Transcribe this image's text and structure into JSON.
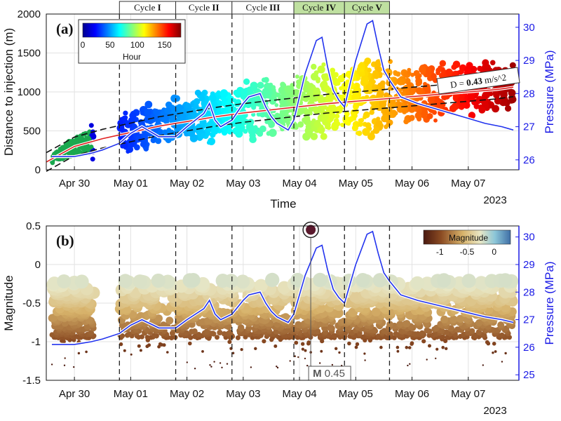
{
  "chart_data": [
    {
      "panel": "(a)",
      "type": "scatter",
      "xlabel": "Time",
      "ylabel": "Distance to injection (m)",
      "ylabel_right": "Pressure (MPa)",
      "xlim": [
        0,
        8.4
      ],
      "ylim": [
        0,
        2000
      ],
      "ylim_right": [
        25.7,
        30.4
      ],
      "x_ticks": [
        {
          "x": 0.5,
          "label": "Apr 30"
        },
        {
          "x": 1.5,
          "label": "May 01"
        },
        {
          "x": 2.5,
          "label": "May 02"
        },
        {
          "x": 3.5,
          "label": "May 03"
        },
        {
          "x": 4.5,
          "label": "May 04"
        },
        {
          "x": 5.5,
          "label": "May 05"
        },
        {
          "x": 6.5,
          "label": "May 06"
        },
        {
          "x": 7.5,
          "label": "May 07"
        }
      ],
      "x_year_label": "2023",
      "y_ticks": [
        0,
        500,
        1000,
        1500,
        2000
      ],
      "y_ticks_right": [
        26,
        27,
        28,
        29,
        30
      ],
      "colorbar": {
        "label": "Hour",
        "ticks": [
          0,
          50,
          100,
          150
        ],
        "range": [
          0,
          180
        ],
        "colormap": "jet"
      },
      "cycles": [
        {
          "label": "Cycle",
          "numeral": "I",
          "x0": 1.3,
          "x1": 2.3,
          "highlight": false
        },
        {
          "label": "Cycle",
          "numeral": "II",
          "x0": 2.3,
          "x1": 3.3,
          "highlight": false
        },
        {
          "label": "Cycle",
          "numeral": "III",
          "x0": 3.3,
          "x1": 4.4,
          "highlight": false
        },
        {
          "label": "Cycle",
          "numeral": "IV",
          "x0": 4.4,
          "x1": 5.3,
          "highlight": true
        },
        {
          "label": "Cycle",
          "numeral": "V",
          "x0": 5.3,
          "x1": 6.1,
          "highlight": true
        }
      ],
      "cycle_highlight_color": "#bfe0a0",
      "dashed_boundaries": [
        1.3,
        2.3,
        3.3,
        4.4,
        5.3,
        6.1
      ],
      "diffusion_fit": {
        "label": "D = 0.43 m/s^2",
        "label_prefix": "D = ",
        "label_value": "0.43",
        "label_unit": " m/s^2",
        "x": [
          0,
          0.5,
          1,
          1.5,
          2,
          2.5,
          3,
          3.5,
          4,
          4.5,
          5,
          5.5,
          6,
          6.5,
          7,
          7.5,
          8,
          8.3
        ],
        "y": [
          100,
          300,
          400,
          480,
          560,
          620,
          680,
          730,
          770,
          810,
          850,
          880,
          910,
          940,
          970,
          1000,
          1030,
          1060
        ],
        "upper_offset": 120,
        "lower_offset": -120,
        "color": "#e02020"
      },
      "pressure": {
        "color": "#2233ee",
        "x": [
          0.1,
          0.3,
          0.5,
          0.8,
          1.0,
          1.3,
          1.5,
          1.7,
          1.9,
          2.0,
          2.1,
          2.3,
          2.5,
          2.8,
          2.9,
          3.0,
          3.1,
          3.3,
          3.5,
          3.6,
          3.8,
          3.9,
          4.0,
          4.1,
          4.2,
          4.3,
          4.4,
          4.6,
          4.8,
          4.9,
          5.0,
          5.1,
          5.2,
          5.3,
          5.5,
          5.7,
          5.8,
          5.9,
          6.0,
          6.1,
          6.3,
          6.6,
          7.0,
          7.4,
          7.8,
          8.1,
          8.3
        ],
        "y": [
          26.1,
          26.1,
          26.1,
          26.2,
          26.3,
          26.5,
          26.8,
          27.0,
          26.8,
          26.7,
          26.7,
          26.7,
          27.0,
          27.4,
          27.7,
          27.2,
          27.0,
          27.2,
          27.7,
          27.9,
          28.0,
          27.6,
          27.3,
          27.1,
          27.0,
          26.9,
          27.2,
          28.6,
          29.6,
          29.7,
          28.8,
          28.1,
          27.8,
          27.6,
          29.0,
          30.1,
          30.2,
          29.4,
          28.7,
          28.4,
          27.9,
          27.7,
          27.5,
          27.3,
          27.1,
          27.0,
          26.9
        ]
      },
      "scatter_seed": 7
    },
    {
      "panel": "(b)",
      "type": "scatter",
      "ylabel": "Magnitude",
      "ylabel_right": "Pressure (MPa)",
      "xlim": [
        0,
        8.4
      ],
      "ylim": [
        -1.5,
        0.5
      ],
      "ylim_right": [
        24.8,
        30.4
      ],
      "x_ticks": [
        {
          "x": 0.5,
          "label": "Apr 30"
        },
        {
          "x": 1.5,
          "label": "May 01"
        },
        {
          "x": 2.5,
          "label": "May 02"
        },
        {
          "x": 3.5,
          "label": "May 03"
        },
        {
          "x": 4.5,
          "label": "May 04"
        },
        {
          "x": 5.5,
          "label": "May 05"
        },
        {
          "x": 6.5,
          "label": "May 06"
        },
        {
          "x": 7.5,
          "label": "May 07"
        }
      ],
      "x_year_label": "2023",
      "y_ticks": [
        -1.5,
        -1,
        -0.5,
        0,
        0.5
      ],
      "y_ticks_right": [
        25,
        26,
        27,
        28,
        29,
        30
      ],
      "colorbar": {
        "label": "Magnitude",
        "ticks": [
          -1,
          -0.5,
          0
        ],
        "range": [
          -1.3,
          0.3
        ]
      },
      "largest_event": {
        "x": 4.7,
        "magnitude": 0.45,
        "label_prefix": "M",
        "label_value": "0.45"
      },
      "dashed_boundaries": [
        1.3,
        2.3,
        3.3,
        4.4,
        5.3,
        6.1
      ],
      "pressure": {
        "color": "#2233ee",
        "x": [
          0.1,
          0.3,
          0.5,
          0.8,
          1.0,
          1.3,
          1.5,
          1.7,
          1.9,
          2.0,
          2.1,
          2.3,
          2.5,
          2.8,
          2.9,
          3.0,
          3.1,
          3.3,
          3.5,
          3.6,
          3.8,
          3.9,
          4.0,
          4.1,
          4.2,
          4.3,
          4.4,
          4.6,
          4.8,
          4.9,
          5.0,
          5.1,
          5.2,
          5.3,
          5.5,
          5.7,
          5.8,
          5.9,
          6.0,
          6.1,
          6.3,
          6.6,
          7.0,
          7.4,
          7.8,
          8.1,
          8.3
        ],
        "y": [
          26.1,
          26.1,
          26.1,
          26.2,
          26.3,
          26.5,
          26.8,
          27.0,
          26.8,
          26.7,
          26.7,
          26.7,
          27.0,
          27.4,
          27.7,
          27.2,
          27.0,
          27.2,
          27.7,
          27.9,
          28.0,
          27.6,
          27.3,
          27.1,
          27.0,
          26.9,
          27.2,
          28.6,
          29.6,
          29.7,
          28.8,
          28.1,
          27.8,
          27.6,
          29.0,
          30.1,
          30.2,
          29.4,
          28.7,
          28.4,
          27.9,
          27.7,
          27.5,
          27.3,
          27.1,
          27.0,
          26.9
        ]
      },
      "scatter_seed": 11
    }
  ]
}
